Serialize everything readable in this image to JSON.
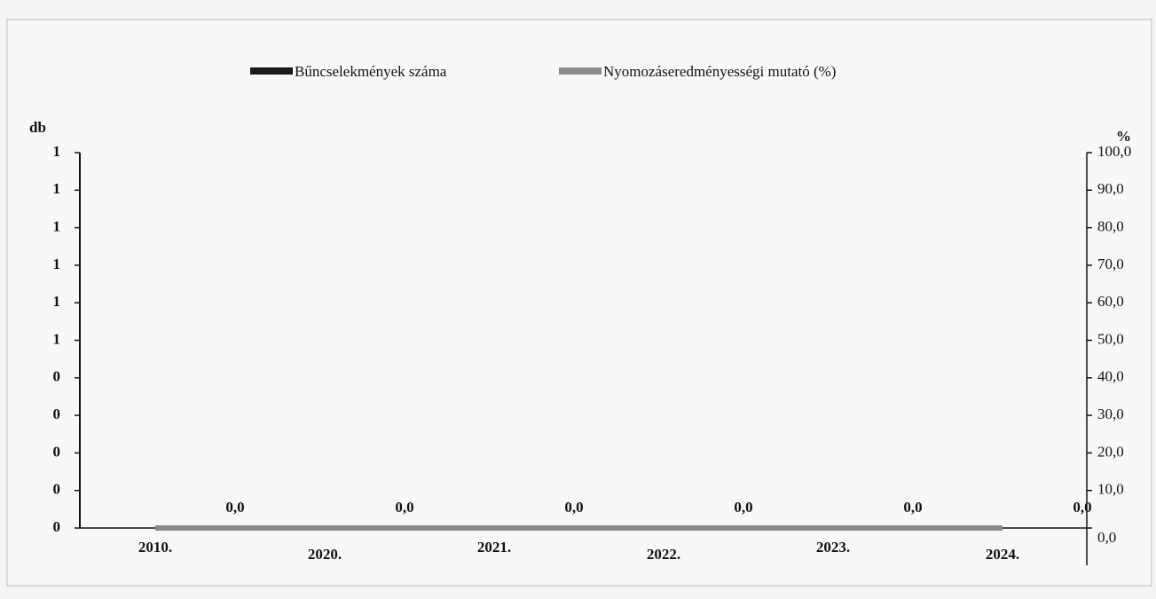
{
  "chart_data": {
    "type": "bar_line",
    "ylabel": "db",
    "y2label": "%",
    "categories": [
      "2010.",
      "2020.",
      "2021.",
      "2022.",
      "2023.",
      "2024."
    ],
    "series": [
      {
        "name": "Bűncselekmények száma",
        "color": "#1a1a1a",
        "type": "bar",
        "values": [
          0,
          0,
          0,
          0,
          0,
          0
        ]
      },
      {
        "name": "Nyomozáseredményességi mutató (%)",
        "color": "#8a8a8a",
        "type": "line",
        "axis": "y2",
        "values": [
          0,
          0,
          0,
          0,
          0,
          0
        ],
        "value_labels": [
          "0,0",
          "0,0",
          "0,0",
          "0,0",
          "0,0",
          "0,0"
        ]
      }
    ],
    "ylim": [
      0,
      1
    ],
    "yticks": [
      {
        "value": 0,
        "label": "0"
      },
      {
        "value": 0.1,
        "label": "0"
      },
      {
        "value": 0.2,
        "label": "0"
      },
      {
        "value": 0.3,
        "label": "0"
      },
      {
        "value": 0.4,
        "label": "0"
      },
      {
        "value": 0.5,
        "label": "1"
      },
      {
        "value": 0.6,
        "label": "1"
      },
      {
        "value": 0.7,
        "label": "1"
      },
      {
        "value": 0.8,
        "label": "1"
      },
      {
        "value": 0.9,
        "label": "1"
      },
      {
        "value": 1,
        "label": "1"
      }
    ],
    "y2lim": [
      0,
      100
    ],
    "y2ticks": [
      {
        "value": 0,
        "label": "0,0"
      },
      {
        "value": 10,
        "label": "10,0"
      },
      {
        "value": 20,
        "label": "20,0"
      },
      {
        "value": 30,
        "label": "30,0"
      },
      {
        "value": 40,
        "label": "40,0"
      },
      {
        "value": 50,
        "label": "50,0"
      },
      {
        "value": 60,
        "label": "60,0"
      },
      {
        "value": 70,
        "label": "70,0"
      },
      {
        "value": 80,
        "label": "80,0"
      },
      {
        "value": 90,
        "label": "90,0"
      },
      {
        "value": 100,
        "label": "100,0"
      }
    ],
    "legend": "top"
  }
}
